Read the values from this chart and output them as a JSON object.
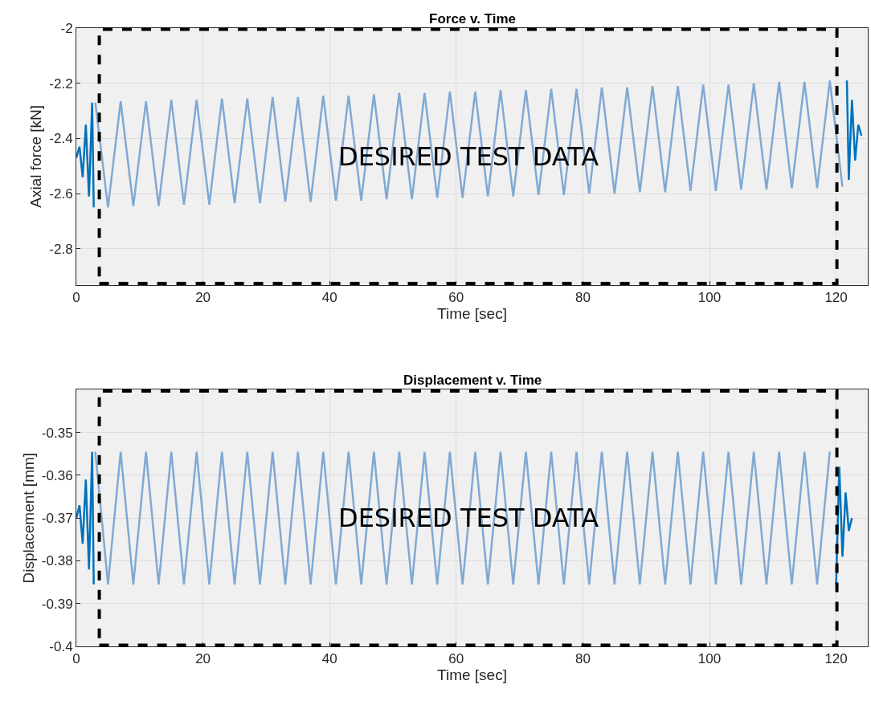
{
  "chart_data": [
    {
      "type": "line",
      "title": "Force v. Time",
      "xlabel": "Time [sec]",
      "ylabel": "Axial force [kN]",
      "xlim": [
        0,
        125
      ],
      "xticks": [
        0,
        20,
        40,
        60,
        80,
        100,
        120
      ],
      "ylim": [
        -2.93,
        -2
      ],
      "yticks": [
        -2,
        -2.2,
        -2.4,
        -2.6,
        -2.8
      ],
      "grid": true,
      "annotations": [
        "DESIRED TEST DATA"
      ],
      "series": [
        {
          "color": "#0072bd",
          "x": [
            0,
            0.5,
            1,
            1.5,
            2,
            2.5,
            2.75
          ],
          "values": [
            -2.47,
            -2.43,
            -2.54,
            -2.35,
            -2.61,
            -2.27,
            -2.65
          ]
        },
        {
          "color": "#80a9d3",
          "x": [
            3,
            5,
            7,
            9,
            11,
            13,
            15,
            17,
            19,
            21,
            23,
            25,
            27,
            29,
            31,
            33,
            35,
            37,
            39,
            41,
            43,
            45,
            47,
            49,
            51,
            53,
            55,
            57,
            59,
            61,
            63,
            65,
            67,
            69,
            71,
            73,
            75,
            77,
            79,
            81,
            83,
            85,
            87,
            89,
            91,
            93,
            95,
            97,
            99,
            101,
            103,
            105,
            107,
            109,
            111,
            113,
            115,
            117,
            119,
            121
          ],
          "values": [
            -2.27,
            -2.65,
            -2.265,
            -2.645,
            -2.265,
            -2.645,
            -2.26,
            -2.64,
            -2.26,
            -2.64,
            -2.255,
            -2.635,
            -2.255,
            -2.635,
            -2.25,
            -2.63,
            -2.25,
            -2.63,
            -2.245,
            -2.625,
            -2.245,
            -2.625,
            -2.24,
            -2.62,
            -2.235,
            -2.62,
            -2.235,
            -2.615,
            -2.23,
            -2.615,
            -2.23,
            -2.61,
            -2.225,
            -2.61,
            -2.225,
            -2.605,
            -2.22,
            -2.605,
            -2.22,
            -2.6,
            -2.215,
            -2.6,
            -2.215,
            -2.595,
            -2.21,
            -2.595,
            -2.21,
            -2.59,
            -2.205,
            -2.59,
            -2.205,
            -2.585,
            -2.2,
            -2.585,
            -2.195,
            -2.58,
            -2.195,
            -2.58,
            -2.19,
            -2.575
          ]
        },
        {
          "color": "#0072bd",
          "x": [
            121.7,
            122,
            122.5,
            123,
            123.5,
            124
          ],
          "values": [
            -2.19,
            -2.55,
            -2.26,
            -2.48,
            -2.35,
            -2.39
          ]
        }
      ]
    },
    {
      "type": "line",
      "title": "Displacement v. Time",
      "xlabel": "Time [sec]",
      "ylabel": "Displacement [mm]",
      "xlim": [
        0,
        125
      ],
      "xticks": [
        0,
        20,
        40,
        60,
        80,
        100,
        120
      ],
      "ylim": [
        -0.4,
        -0.34
      ],
      "yticks": [
        -0.35,
        -0.36,
        -0.37,
        -0.38,
        -0.39,
        -0.4
      ],
      "grid": true,
      "annotations": [
        "DESIRED TEST DATA"
      ],
      "series": [
        {
          "color": "#0072bd",
          "x": [
            0,
            0.5,
            1,
            1.5,
            2,
            2.5,
            2.75
          ],
          "values": [
            -0.37,
            -0.367,
            -0.376,
            -0.361,
            -0.382,
            -0.3545,
            -0.3855
          ]
        },
        {
          "color": "#80a9d3",
          "x": [
            3,
            5,
            7,
            9,
            11,
            13,
            15,
            17,
            19,
            21,
            23,
            25,
            27,
            29,
            31,
            33,
            35,
            37,
            39,
            41,
            43,
            45,
            47,
            49,
            51,
            53,
            55,
            57,
            59,
            61,
            63,
            65,
            67,
            69,
            71,
            73,
            75,
            77,
            79,
            81,
            83,
            85,
            87,
            89,
            91,
            93,
            95,
            97,
            99,
            101,
            103,
            105,
            107,
            109,
            111,
            113,
            115,
            117,
            119
          ],
          "values": [
            -0.3545,
            -0.3855,
            -0.3545,
            -0.3855,
            -0.3545,
            -0.3855,
            -0.3545,
            -0.3855,
            -0.3545,
            -0.3855,
            -0.3545,
            -0.3855,
            -0.3545,
            -0.3855,
            -0.3545,
            -0.3855,
            -0.3545,
            -0.3855,
            -0.3545,
            -0.3855,
            -0.3545,
            -0.3855,
            -0.3545,
            -0.3855,
            -0.3545,
            -0.3855,
            -0.3545,
            -0.3855,
            -0.3545,
            -0.3855,
            -0.3545,
            -0.3855,
            -0.3545,
            -0.3855,
            -0.3545,
            -0.3855,
            -0.3545,
            -0.3855,
            -0.3545,
            -0.3855,
            -0.3545,
            -0.3855,
            -0.3545,
            -0.3855,
            -0.3545,
            -0.3855,
            -0.3545,
            -0.3855,
            -0.3545,
            -0.3855,
            -0.3545,
            -0.3855,
            -0.3545,
            -0.3855,
            -0.3545,
            -0.3855,
            -0.3545,
            -0.3855,
            -0.3545
          ]
        },
        {
          "color": "#0072bd",
          "x": [
            120,
            120.5,
            121,
            121.5,
            122,
            122.5
          ],
          "values": [
            -0.3855,
            -0.358,
            -0.379,
            -0.364,
            -0.373,
            -0.37
          ]
        }
      ]
    }
  ]
}
